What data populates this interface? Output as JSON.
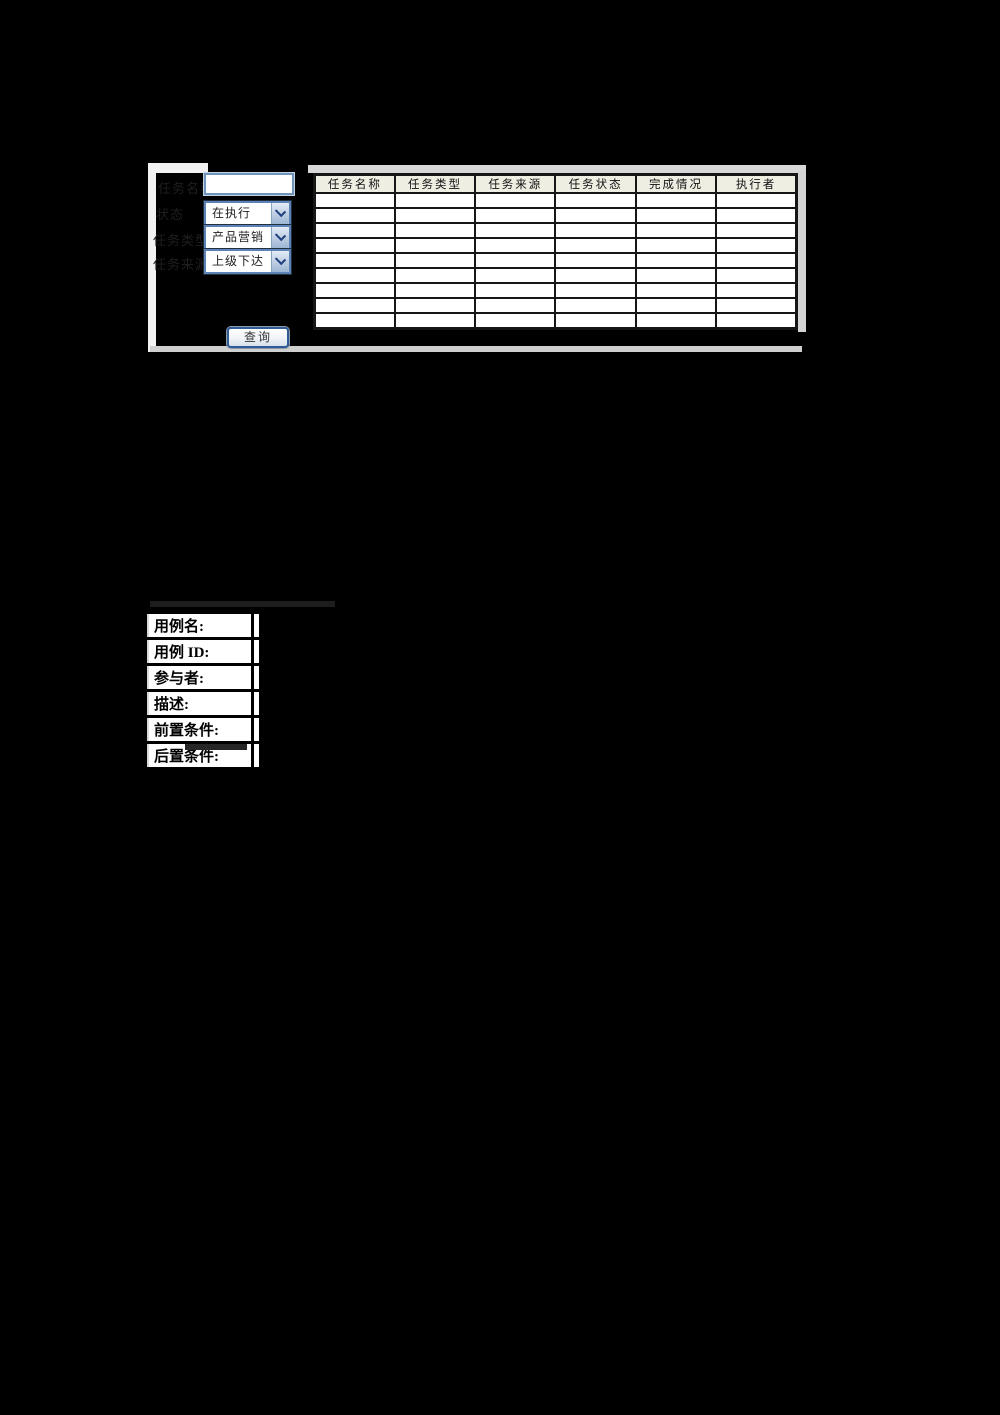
{
  "colors": {
    "page_background": "#000000",
    "table_header_bg": "#eeeee3",
    "control_border_blue": "#5b83b5",
    "button_border_blue": "#2f5c97",
    "frame_strip_gray": "#d8d8d8"
  },
  "search_panel": {
    "task_name_label": "任务名称",
    "task_name_value": "",
    "status_label": "状态",
    "status_value": "在执行",
    "type_label": "任务类型",
    "type_value": "产品营销",
    "source_label": "任务来源",
    "source_value": "上级下达",
    "query_button_label": "查询"
  },
  "task_table": {
    "headers": [
      "任务名称",
      "任务类型",
      "任务来源",
      "任务状态",
      "完成情况",
      "执行者"
    ],
    "empty_row_count": 9,
    "columns": 6
  },
  "usecase_table": {
    "row_labels": [
      "用例名:",
      "用例 ID:",
      "参与者:",
      "描述:",
      "前置条件:",
      "后置条件:"
    ]
  }
}
